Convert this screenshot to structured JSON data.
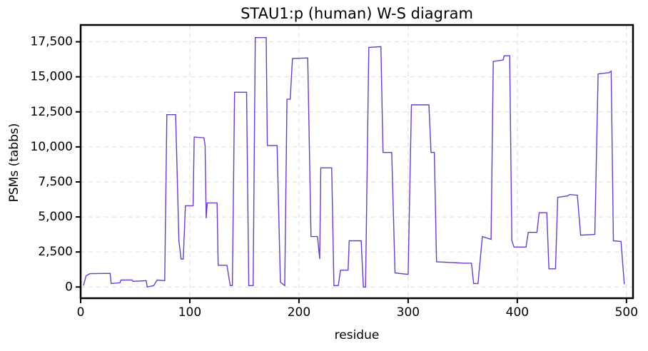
{
  "chart_data": {
    "type": "line",
    "title": "STAU1:p (human) W-S diagram",
    "x_label": "residue",
    "y_label": "PSMs (tabbs)",
    "x": [
      2.6,
      5,
      8.5,
      27,
      28,
      36,
      37,
      47,
      48,
      60,
      61,
      67,
      70,
      77,
      79,
      87,
      90,
      92,
      94,
      96,
      103,
      104,
      113,
      114,
      115,
      116,
      125,
      126,
      134,
      137,
      139,
      141,
      152,
      154,
      158,
      160,
      170,
      171,
      180,
      183,
      187,
      189,
      192,
      194,
      208,
      211,
      217,
      219,
      220,
      230,
      232,
      236,
      238,
      245,
      246,
      257,
      259,
      261,
      264,
      275,
      277,
      285,
      288,
      300,
      303,
      319,
      321,
      324,
      326,
      351,
      358,
      360,
      364,
      368,
      376,
      378,
      387,
      388,
      393,
      395,
      397,
      408,
      410,
      418,
      420,
      427,
      429,
      435,
      437,
      446,
      448,
      455,
      458,
      471,
      474,
      484,
      486,
      488,
      495,
      498
    ],
    "series": [
      {
        "name": "STAU1:p",
        "color": "#6a3dc8",
        "values": [
          100,
          800,
          950,
          970,
          250,
          300,
          500,
          500,
          400,
          450,
          0,
          100,
          500,
          450,
          12300,
          12300,
          3300,
          2000,
          2000,
          5800,
          5800,
          10700,
          10650,
          10100,
          4900,
          6000,
          6000,
          1550,
          1550,
          100,
          100,
          13900,
          13900,
          100,
          100,
          17800,
          17800,
          10100,
          10100,
          350,
          100,
          13400,
          13400,
          16300,
          16350,
          3600,
          3600,
          2000,
          8500,
          8500,
          100,
          100,
          1200,
          1200,
          3300,
          3300,
          0,
          0,
          17100,
          17150,
          9600,
          9600,
          1000,
          900,
          13000,
          13000,
          9600,
          9600,
          1800,
          1700,
          1700,
          250,
          250,
          3600,
          3400,
          16100,
          16200,
          16500,
          16500,
          3300,
          2850,
          2850,
          3900,
          3900,
          5300,
          5300,
          1300,
          1300,
          6400,
          6500,
          6600,
          6550,
          3700,
          3750,
          15200,
          15300,
          15400,
          3300,
          3250,
          200
        ]
      }
    ],
    "xlim": [
      0,
      506
    ],
    "ylim": [
      -800,
      18700
    ],
    "xticks": [
      0,
      100,
      200,
      300,
      400,
      500
    ],
    "yticks": [
      0,
      {
        "value": 2500,
        "label": "2,500"
      },
      {
        "value": 5000,
        "label": "5,000"
      },
      {
        "value": 7500,
        "label": "7,500"
      },
      {
        "value": 10000,
        "label": "10,000"
      },
      {
        "value": 12500,
        "label": "12,500"
      },
      {
        "value": 15000,
        "label": "15,000"
      },
      {
        "value": 17500,
        "label": "17,500"
      }
    ],
    "grid": true
  }
}
